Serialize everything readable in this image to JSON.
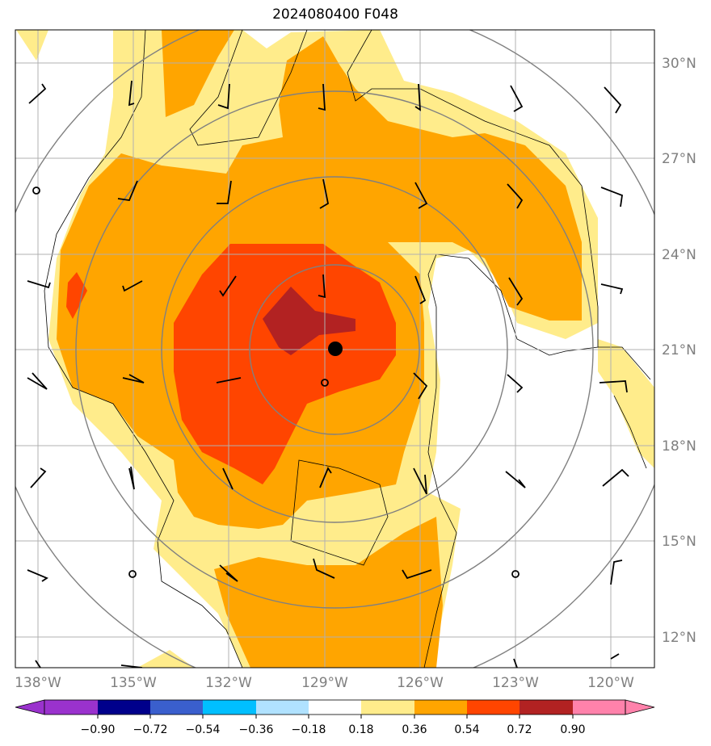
{
  "title": "2024080400 F048",
  "map": {
    "lon_ticks": [
      "138°W",
      "135°W",
      "132°W",
      "129°W",
      "126°W",
      "123°W",
      "120°W"
    ],
    "lat_ticks": [
      "30°N",
      "27°N",
      "24°N",
      "21°N",
      "18°N",
      "15°N",
      "12°N"
    ],
    "storm_center": {
      "lon": -128.6,
      "lat": 21.1
    }
  },
  "colorbar": {
    "labels": [
      "−0.90",
      "−0.72",
      "−0.54",
      "−0.36",
      "−0.18",
      "0.18",
      "0.36",
      "0.54",
      "0.72",
      "0.90"
    ],
    "colors": [
      "#9a32cd",
      "#00008b",
      "#3a5fcd",
      "#00bfff",
      "#b0e2ff",
      "#ffffff",
      "#ffec8b",
      "#ffa500",
      "#ff4500",
      "#b22222",
      "#ff82ab"
    ]
  },
  "fill_colors": {
    "level1": "#ffec8b",
    "level2": "#ffa500",
    "level3": "#ff4500",
    "level4": "#b22222"
  }
}
